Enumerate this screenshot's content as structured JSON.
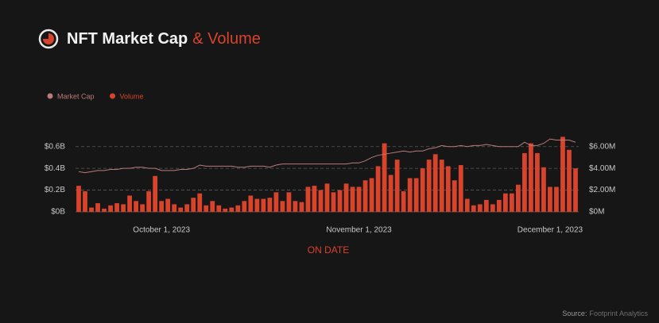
{
  "chart_data": {
    "type": "bar",
    "title": "NFT Market Cap",
    "title_accent": "& Volume",
    "x_label": "ON DATE",
    "source_label": "Source:",
    "source": "Footprint Analytics",
    "categories": [
      null,
      null,
      null,
      null,
      null,
      null,
      null,
      null,
      null,
      null,
      null,
      null,
      null,
      "October 1, 2023",
      null,
      null,
      null,
      null,
      null,
      null,
      null,
      null,
      null,
      null,
      null,
      null,
      null,
      null,
      null,
      null,
      null,
      null,
      null,
      null,
      null,
      null,
      null,
      null,
      null,
      null,
      null,
      null,
      null,
      null,
      "November 1, 2023",
      null,
      null,
      null,
      null,
      null,
      null,
      null,
      null,
      null,
      null,
      null,
      null,
      null,
      null,
      null,
      null,
      null,
      null,
      null,
      null,
      null,
      null,
      null,
      null,
      null,
      null,
      null,
      null,
      null,
      "December 1, 2023",
      null,
      null,
      null,
      null
    ],
    "series": [
      {
        "name": "Market Cap",
        "type": "line",
        "axis": "y",
        "color": "#b97b78",
        "values": [
          0.37,
          0.36,
          0.37,
          0.38,
          0.38,
          0.39,
          0.39,
          0.4,
          0.4,
          0.41,
          0.41,
          0.4,
          0.4,
          0.38,
          0.38,
          0.38,
          0.39,
          0.39,
          0.4,
          0.43,
          0.42,
          0.42,
          0.42,
          0.42,
          0.42,
          0.41,
          0.41,
          0.42,
          0.42,
          0.42,
          0.41,
          0.43,
          0.44,
          0.44,
          0.44,
          0.44,
          0.44,
          0.44,
          0.44,
          0.44,
          0.44,
          0.44,
          0.44,
          0.45,
          0.45,
          0.47,
          0.5,
          0.52,
          0.53,
          0.54,
          0.55,
          0.56,
          0.55,
          0.56,
          0.56,
          0.58,
          0.59,
          0.61,
          0.6,
          0.6,
          0.61,
          0.6,
          0.61,
          0.61,
          0.62,
          0.61,
          0.6,
          0.6,
          0.6,
          0.6,
          0.64,
          0.61,
          0.61,
          0.63,
          0.67,
          0.66,
          0.66,
          0.66,
          0.64
        ]
      },
      {
        "name": "Volume",
        "type": "bar",
        "axis": "y2",
        "color": "#d8432b",
        "values": [
          2.4,
          1.9,
          0.4,
          0.8,
          0.3,
          0.6,
          0.8,
          0.7,
          1.5,
          1.0,
          0.7,
          1.9,
          3.3,
          1.0,
          1.2,
          0.7,
          0.4,
          0.7,
          1.3,
          1.7,
          0.6,
          1.0,
          0.6,
          0.3,
          0.4,
          0.6,
          1.0,
          1.5,
          1.2,
          1.2,
          1.3,
          1.8,
          1.0,
          1.8,
          1.0,
          0.9,
          2.3,
          2.4,
          2.0,
          2.6,
          1.8,
          2.0,
          2.6,
          2.3,
          2.3,
          2.9,
          3.1,
          4.2,
          6.3,
          3.4,
          4.8,
          1.9,
          3.1,
          3.1,
          4.0,
          4.8,
          5.3,
          4.8,
          4.2,
          2.9,
          4.3,
          1.2,
          0.6,
          0.7,
          1.1,
          0.7,
          1.1,
          1.7,
          1.7,
          2.5,
          5.4,
          6.3,
          5.4,
          4.1,
          2.3,
          2.3,
          6.9,
          5.7,
          4.0
        ]
      }
    ],
    "ylim": [
      0,
      0.7
    ],
    "yticks": [
      {
        "value": 0,
        "label": "$0B"
      },
      {
        "value": 0.2,
        "label": "$0.2B"
      },
      {
        "value": 0.4,
        "label": "$0.4B"
      },
      {
        "value": 0.6,
        "label": "$0.6B"
      }
    ],
    "y2lim": [
      0,
      7
    ],
    "y2ticks": [
      {
        "value": 0,
        "label": "$0M"
      },
      {
        "value": 2,
        "label": "$2.00M"
      },
      {
        "value": 4,
        "label": "$4.00M"
      },
      {
        "value": 6,
        "label": "$6.00M"
      }
    ],
    "grid": true,
    "legend": "top-left"
  }
}
